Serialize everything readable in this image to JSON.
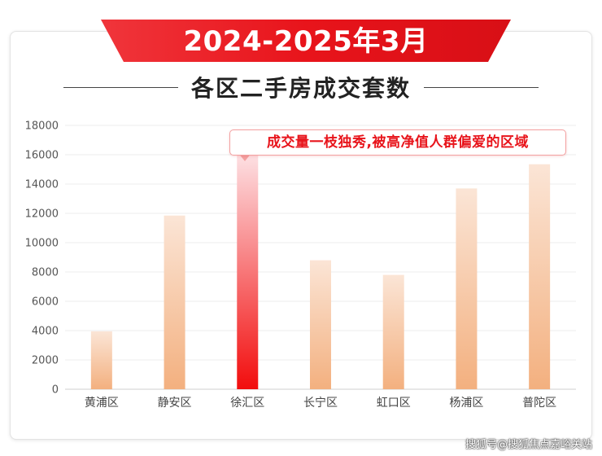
{
  "header": {
    "title": "2024-2025年3月",
    "subtitle": "各区二手房成交套数"
  },
  "callout": {
    "text": "成交量一枝独秀,被高净值人群偏爱的区域"
  },
  "watermark": "搜狐号@搜狐焦点嘉峪关站",
  "colors": {
    "ribbon": "#e8141b",
    "ribbon_dark": "#8f0a0e",
    "bar_top": "#fbe5d6",
    "bar_bottom": "#f3b07f",
    "highlight_top": "#fde0e3",
    "highlight_bottom": "#f20d0d",
    "grid": "#ececec",
    "tick_text": "#555555"
  },
  "chart_data": {
    "type": "bar",
    "categories": [
      "黄浦区",
      "静安区",
      "徐汇区",
      "长宁区",
      "虹口区",
      "杨浦区",
      "普陀区"
    ],
    "values": [
      3950,
      11850,
      16000,
      8800,
      7800,
      13700,
      15350
    ],
    "highlight_category": "徐汇区",
    "yticks": [
      0,
      2000,
      4000,
      6000,
      8000,
      10000,
      12000,
      14000,
      16000,
      18000
    ],
    "ylim": [
      0,
      18000
    ],
    "grid": true,
    "legend": "none"
  }
}
